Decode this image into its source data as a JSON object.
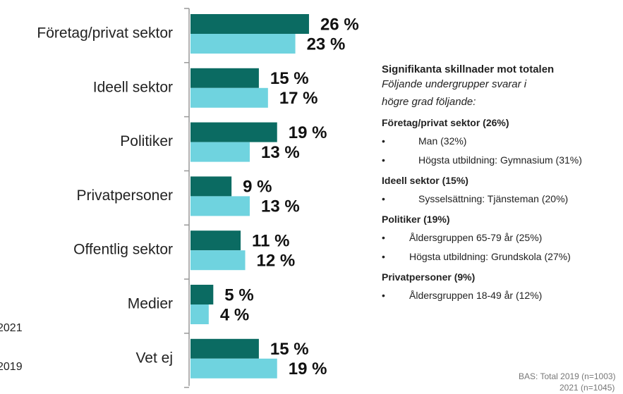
{
  "chart_data": {
    "type": "bar",
    "orientation": "horizontal",
    "categories": [
      "Företag/privat sektor",
      "Ideell sektor",
      "Politiker",
      "Privatpersoner",
      "Offentlig sektor",
      "Medier",
      "Vet ej"
    ],
    "series": [
      {
        "name": "2021",
        "color": "#0b6b62",
        "values": [
          26,
          15,
          19,
          9,
          11,
          5,
          15
        ],
        "value_labels": [
          "26 %",
          "15 %",
          "19 %",
          "9 %",
          "11 %",
          "5 %",
          "15 %"
        ]
      },
      {
        "name": "2019",
        "color": "#6fd3df",
        "values": [
          23,
          17,
          13,
          13,
          12,
          4,
          19
        ],
        "value_labels": [
          "23 %",
          "17 %",
          "13 %",
          "13 %",
          "12 %",
          "4 %",
          "19 %"
        ]
      }
    ]
  },
  "panel": {
    "title": "Signifikanta skillnader mot totalen",
    "subtitle": "Följande undergrupper svarar i högre grad följande:",
    "groups": [
      {
        "heading": "Företag/privat sektor (26%)",
        "items": [
          "Man (32%)",
          "Högsta utbildning: Gymnasium (31%)"
        ]
      },
      {
        "heading": "Ideell sektor (15%)",
        "items": [
          "Sysselsättning: Tjänsteman (20%)"
        ]
      },
      {
        "heading": "Politiker (19%)",
        "items": [
          "Åldersgruppen 65-79 år (25%)",
          "Högsta utbildning: Grundskola (27%)"
        ]
      },
      {
        "heading": "Privatpersoner (9%)",
        "items": [
          "Åldersgruppen 18-49 år (12%)"
        ]
      }
    ]
  },
  "source": [
    "BAS: Total 2019 (n=1003)",
    "2021 (n=1045)"
  ]
}
